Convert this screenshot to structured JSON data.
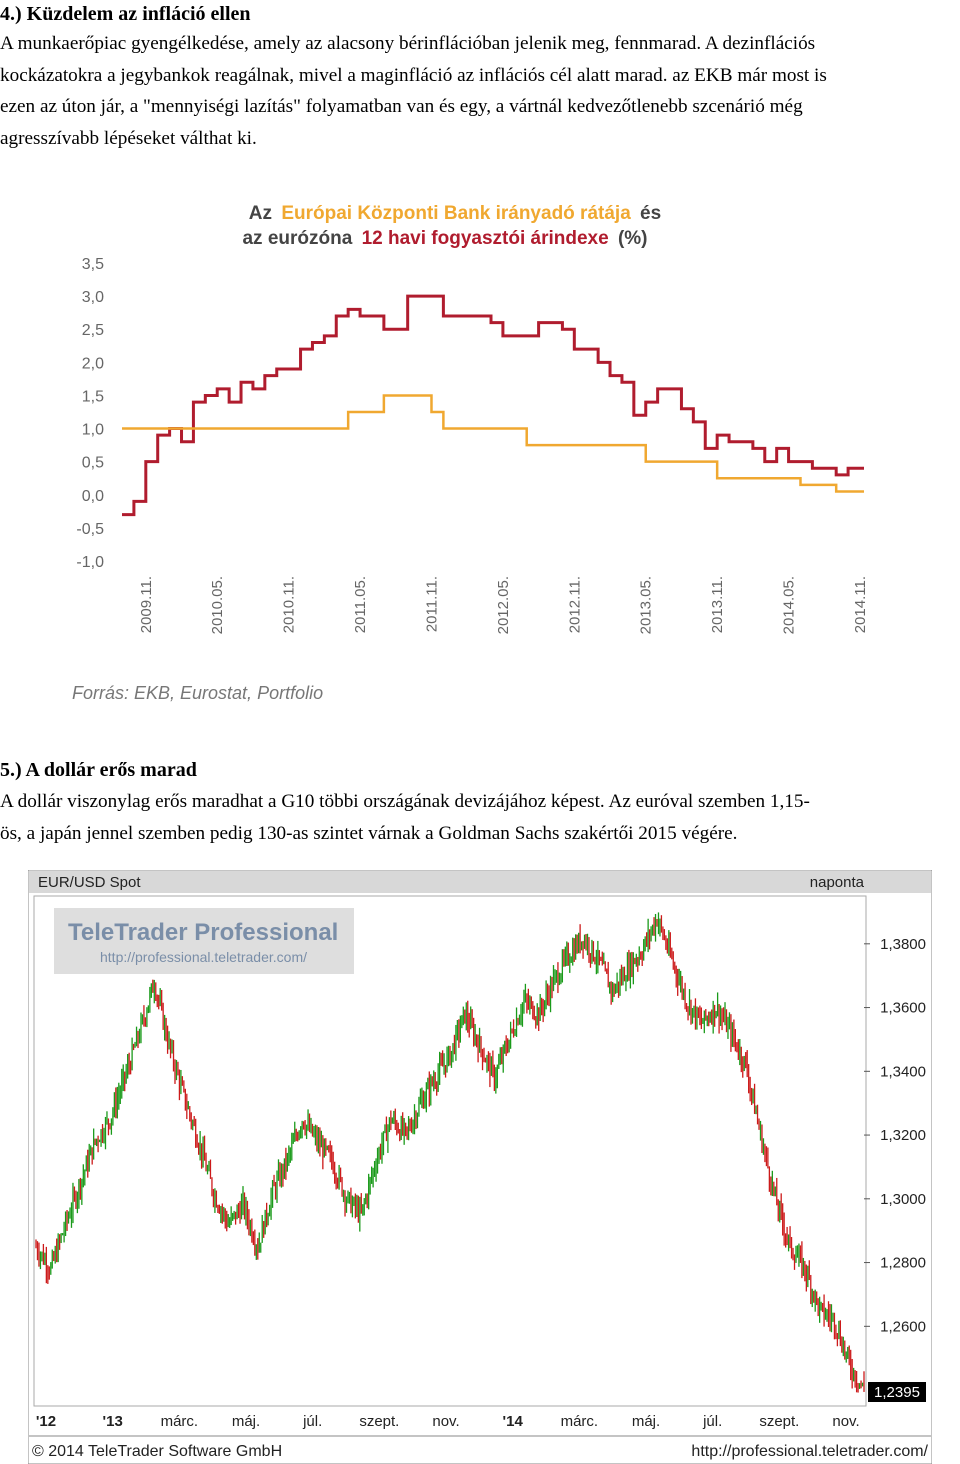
{
  "section4": {
    "title": "4.) Küzdelem az infláció ellen",
    "lines": [
      "A munkaerőpiac gyengélkedése, amely az alacsony bérinflációban jelenik meg, fennmarad. A dezinflációs",
      "kockázatokra a jegybankok reagálnak, mivel a maginfláció az inflációs cél alatt marad. az EKB már most is",
      "ezen az úton jár, a \"mennyiségi lazítás\" folyamatban van és egy, a vártnál kedvezőtlenebb szcenárió még",
      "agresszívabb lépéseket válthat ki."
    ]
  },
  "chart1": {
    "title_line1": {
      "w1": "Az",
      "w2": "Európai Központi Bank irányadó rátája",
      "w3": "és"
    },
    "title_line2": {
      "w1": "az eurózóna",
      "w2": "12 havi fogyasztói árindexe",
      "w3": "(%)"
    },
    "source": "Forrás: EKB, Eurostat, Portfolio",
    "colors": {
      "cpi": "#b01c2e",
      "ecb": "#f0a830",
      "title_orange": "#f0a830",
      "title_red": "#b01c2e",
      "axis_text": "#666666"
    },
    "chart_data": {
      "type": "line",
      "ylim": [
        -1.0,
        3.5
      ],
      "yticks": [
        3.5,
        3.0,
        2.5,
        2.0,
        1.5,
        1.0,
        0.5,
        0.0,
        -0.5,
        -1.0
      ],
      "ytick_labels": [
        "3,5",
        "3,0",
        "2,5",
        "2,0",
        "1,5",
        "1,0",
        "0,5",
        "0,0",
        "-0,5",
        "-1,0"
      ],
      "xtick_labels": [
        "2009.11.",
        "2010.05.",
        "2010.11.",
        "2011.05.",
        "2011.11.",
        "2012.05.",
        "2012.11.",
        "2013.05.",
        "2013.11.",
        "2014.05.",
        "2014.11."
      ],
      "x_months": [
        "2009-09",
        "2009-10",
        "2009-11",
        "2009-12",
        "2010-01",
        "2010-02",
        "2010-03",
        "2010-04",
        "2010-05",
        "2010-06",
        "2010-07",
        "2010-08",
        "2010-09",
        "2010-10",
        "2010-11",
        "2010-12",
        "2011-01",
        "2011-02",
        "2011-03",
        "2011-04",
        "2011-05",
        "2011-06",
        "2011-07",
        "2011-08",
        "2011-09",
        "2011-10",
        "2011-11",
        "2011-12",
        "2012-01",
        "2012-02",
        "2012-03",
        "2012-04",
        "2012-05",
        "2012-06",
        "2012-07",
        "2012-08",
        "2012-09",
        "2012-10",
        "2012-11",
        "2012-12",
        "2013-01",
        "2013-02",
        "2013-03",
        "2013-04",
        "2013-05",
        "2013-06",
        "2013-07",
        "2013-08",
        "2013-09",
        "2013-10",
        "2013-11",
        "2013-12",
        "2014-01",
        "2014-02",
        "2014-03",
        "2014-04",
        "2014-05",
        "2014-06",
        "2014-07",
        "2014-08",
        "2014-09",
        "2014-10",
        "2014-11"
      ],
      "series": [
        {
          "values": [
            -0.3,
            -0.1,
            0.5,
            0.9,
            1.0,
            0.8,
            1.4,
            1.5,
            1.6,
            1.4,
            1.7,
            1.6,
            1.8,
            1.9,
            1.9,
            2.2,
            2.3,
            2.4,
            2.7,
            2.8,
            2.7,
            2.7,
            2.5,
            2.5,
            3.0,
            3.0,
            3.0,
            2.7,
            2.7,
            2.7,
            2.7,
            2.6,
            2.4,
            2.4,
            2.4,
            2.6,
            2.6,
            2.5,
            2.2,
            2.2,
            2.0,
            1.8,
            1.7,
            1.2,
            1.4,
            1.6,
            1.6,
            1.3,
            1.1,
            0.7,
            0.9,
            0.8,
            0.8,
            0.7,
            0.5,
            0.7,
            0.5,
            0.5,
            0.4,
            0.4,
            0.3,
            0.4,
            0.4
          ]
        },
        {
          "values": [
            1.0,
            1.0,
            1.0,
            1.0,
            1.0,
            1.0,
            1.0,
            1.0,
            1.0,
            1.0,
            1.0,
            1.0,
            1.0,
            1.0,
            1.0,
            1.0,
            1.0,
            1.0,
            1.0,
            1.25,
            1.25,
            1.25,
            1.5,
            1.5,
            1.5,
            1.5,
            1.25,
            1.0,
            1.0,
            1.0,
            1.0,
            1.0,
            1.0,
            1.0,
            0.75,
            0.75,
            0.75,
            0.75,
            0.75,
            0.75,
            0.75,
            0.75,
            0.75,
            0.75,
            0.5,
            0.5,
            0.5,
            0.5,
            0.5,
            0.5,
            0.25,
            0.25,
            0.25,
            0.25,
            0.25,
            0.25,
            0.25,
            0.15,
            0.15,
            0.15,
            0.05,
            0.05,
            0.05
          ]
        }
      ]
    }
  },
  "section5": {
    "title": "5.) A dollár erős marad",
    "lines": [
      "A dollár viszonylag erős maradhat a G10 többi országának devizájához képest. Az euróval szemben 1,15-",
      "ös, a japán jennel szemben pedig 130-as szintet várnak a Goldman Sachs szakértői 2015 végére."
    ]
  },
  "chart2": {
    "header_left": "EUR/USD Spot",
    "header_right": "naponta",
    "watermark_title": "TeleTrader Professional",
    "watermark_url": "http://professional.teletrader.com/",
    "last_value": "1,2395",
    "footer_left": "© 2014 TeleTrader Software GmbH",
    "footer_right": "http://professional.teletrader.com/",
    "colors": {
      "up": "#1a9a1a",
      "down": "#cc1a1a",
      "header_bg": "#d8d8d8"
    },
    "chart_data": {
      "type": "line",
      "series_name": "EUR/USD Spot",
      "ylim": [
        1.235,
        1.395
      ],
      "yticks": [
        1.38,
        1.36,
        1.34,
        1.32,
        1.3,
        1.28,
        1.26
      ],
      "ytick_labels": [
        "1,3800",
        "1,3600",
        "1,3400",
        "1,3200",
        "1,3000",
        "1,2800",
        "1,2600"
      ],
      "xtick_labels": [
        "'12",
        "'13",
        "márc.",
        "máj.",
        "júl.",
        "szept.",
        "nov.",
        "'14",
        "márc.",
        "máj.",
        "júl.",
        "szept.",
        "nov."
      ],
      "x_weeks": [
        0,
        2,
        4,
        6,
        8,
        10,
        12,
        14,
        16,
        18,
        20,
        22,
        24,
        26,
        28,
        30,
        32,
        34,
        36,
        38,
        40,
        42,
        44,
        46,
        48,
        50,
        52,
        54,
        56,
        58,
        60,
        62,
        64,
        66,
        68,
        70,
        72,
        74,
        76,
        78,
        80,
        82,
        84,
        86,
        88,
        90,
        92,
        94,
        96,
        98,
        100,
        102,
        104,
        106,
        108,
        110,
        112
      ],
      "values": [
        1.285,
        1.278,
        1.292,
        1.305,
        1.318,
        1.325,
        1.338,
        1.352,
        1.368,
        1.348,
        1.332,
        1.318,
        1.302,
        1.292,
        1.298,
        1.285,
        1.302,
        1.312,
        1.325,
        1.318,
        1.312,
        1.3,
        1.295,
        1.312,
        1.325,
        1.32,
        1.33,
        1.338,
        1.345,
        1.358,
        1.348,
        1.338,
        1.35,
        1.362,
        1.358,
        1.368,
        1.376,
        1.382,
        1.375,
        1.365,
        1.372,
        1.378,
        1.388,
        1.375,
        1.362,
        1.355,
        1.36,
        1.352,
        1.342,
        1.32,
        1.3,
        1.285,
        1.278,
        1.265,
        1.262,
        1.248,
        1.24
      ]
    }
  }
}
